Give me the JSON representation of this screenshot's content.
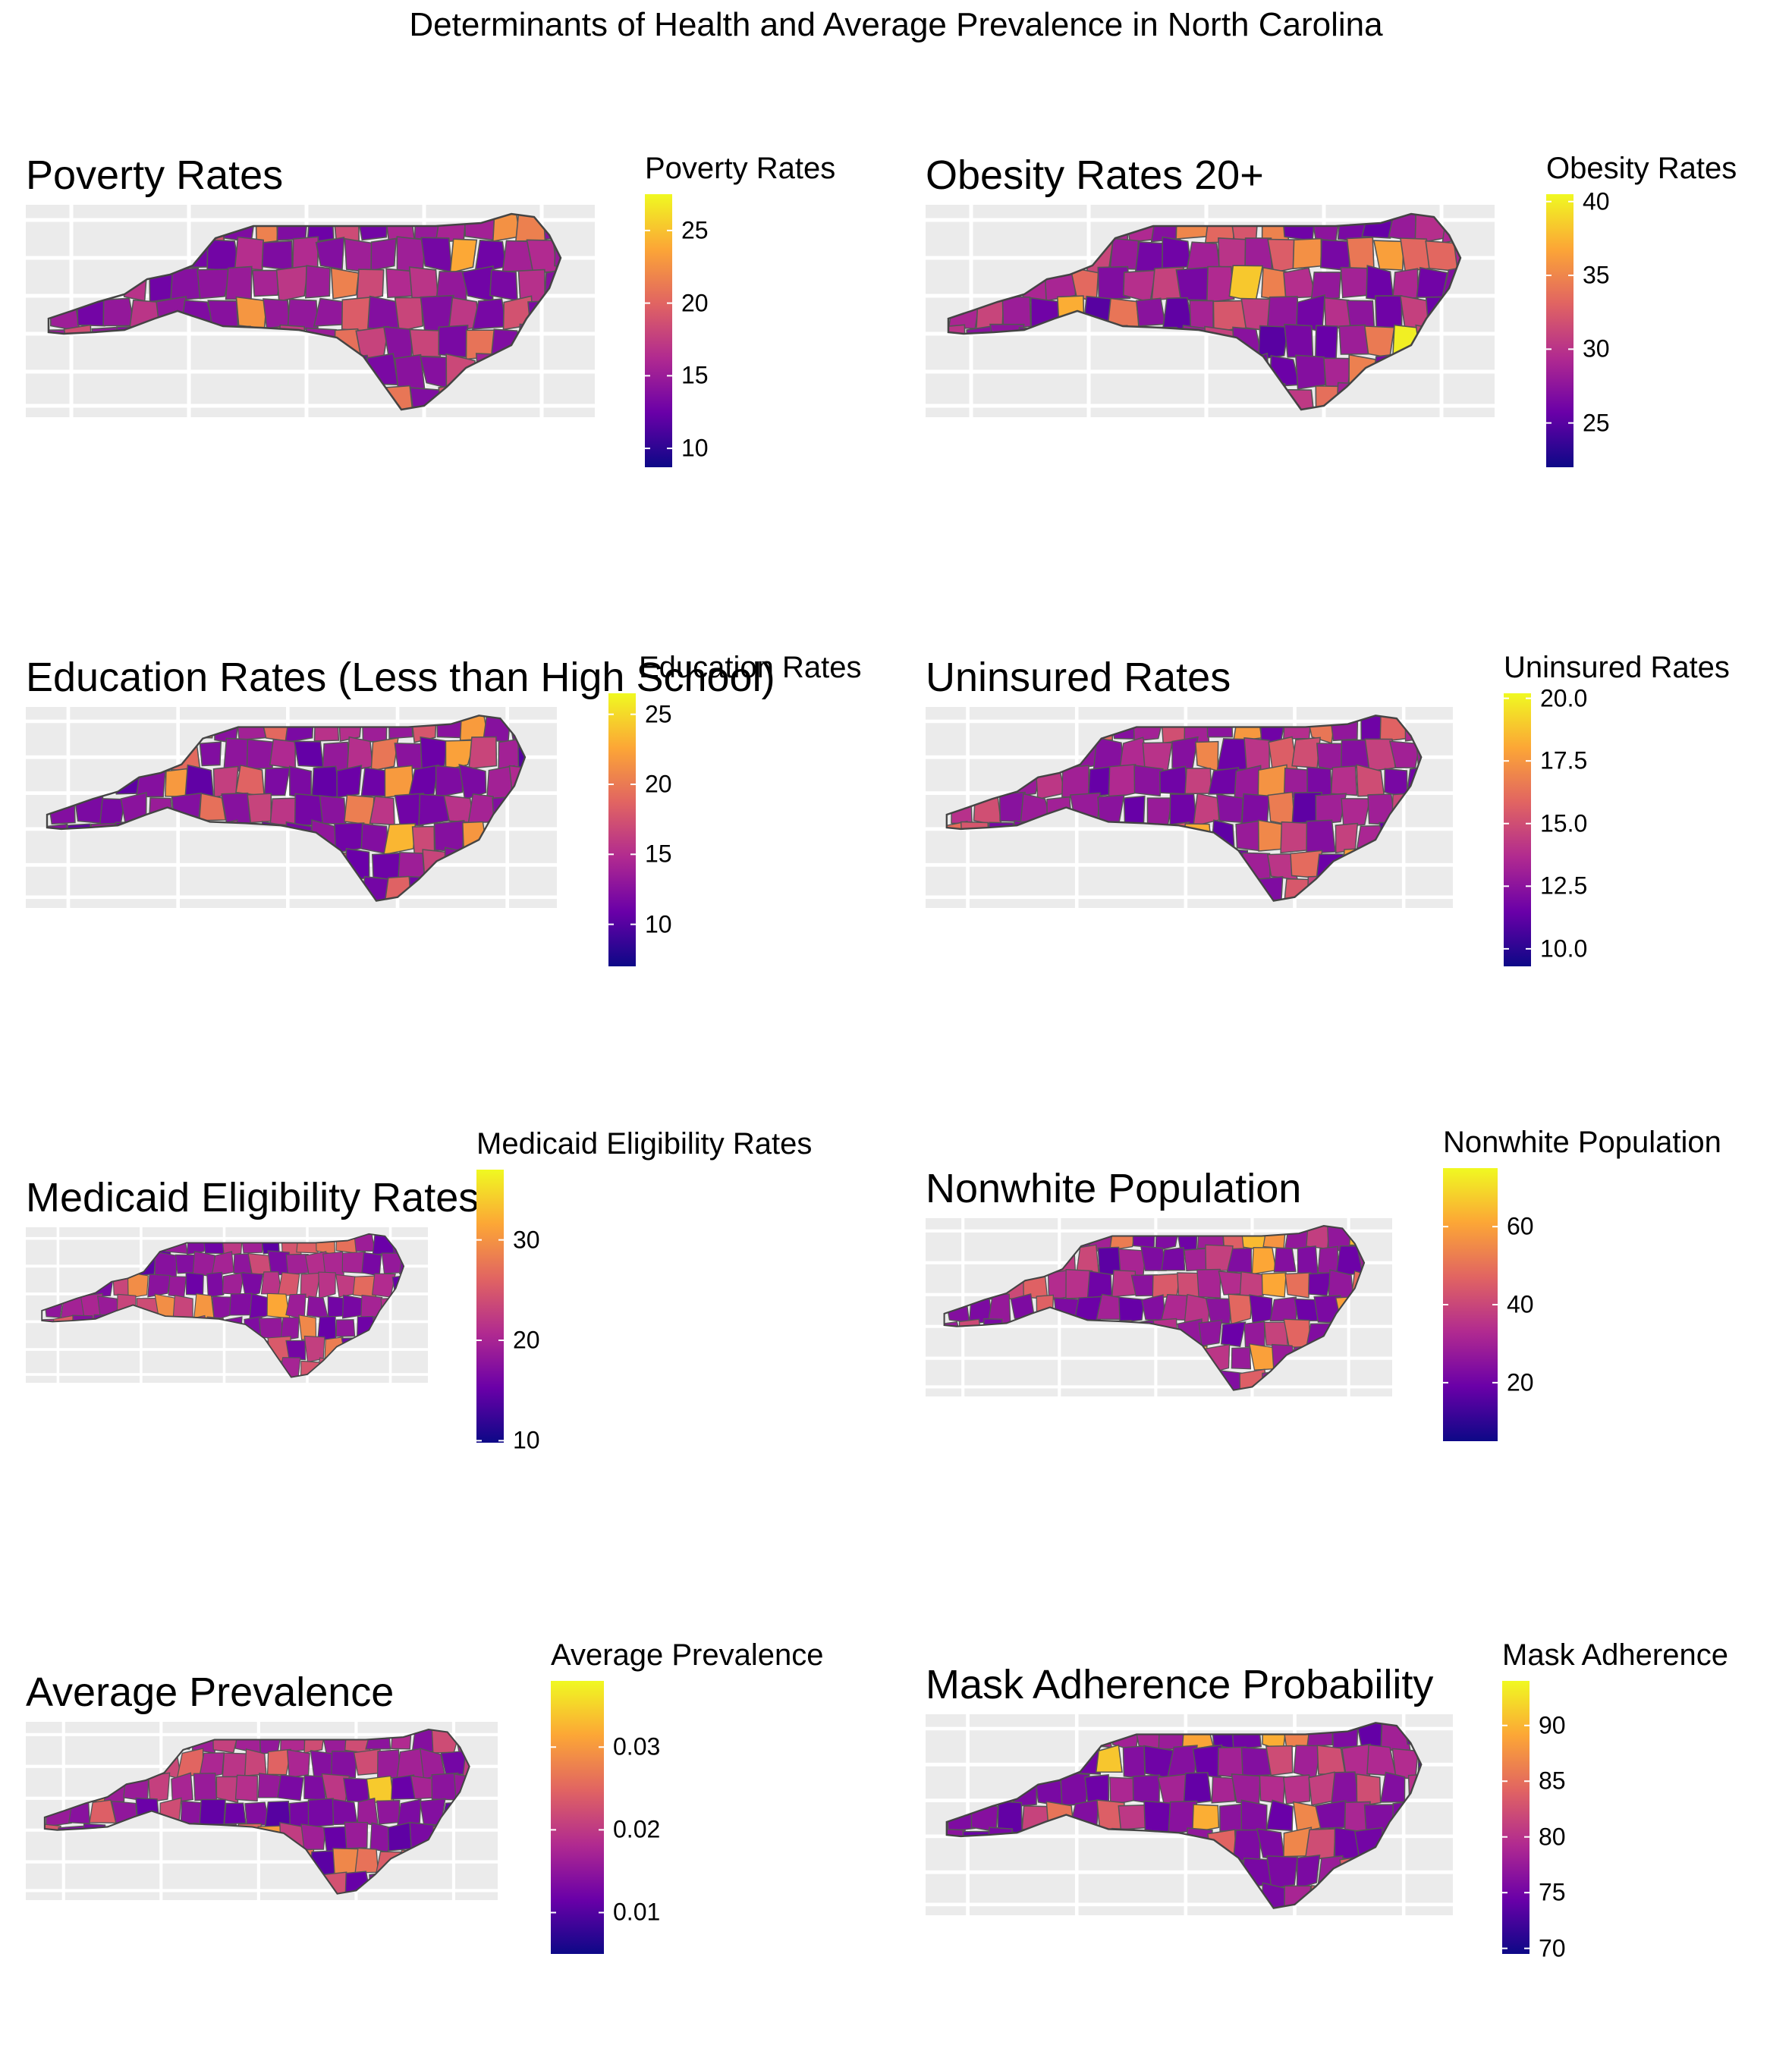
{
  "title": "Determinants of Health and Average Prevalence in North Carolina",
  "colorscale": [
    "#0d0887",
    "#6a00a8",
    "#b12a90",
    "#e16462",
    "#fca636",
    "#f0f921"
  ],
  "panels": [
    {
      "id": "poverty",
      "title": "Poverty Rates",
      "legend_title": "Poverty Rates",
      "range": [
        8.7,
        27.5
      ],
      "ticks": [
        10,
        15,
        20,
        25
      ],
      "tick_labels": [
        "10",
        "15",
        "20",
        "25"
      ],
      "seed": 3
    },
    {
      "id": "obesity",
      "title": "Obesity Rates 20+",
      "legend_title": "Obesity Rates",
      "range": [
        22,
        40.5
      ],
      "ticks": [
        25,
        30,
        35,
        40
      ],
      "tick_labels": [
        "25",
        "30",
        "35",
        "40"
      ],
      "seed": 7
    },
    {
      "id": "education",
      "title": "Education Rates (Less than High School)",
      "legend_title": "Education Rates",
      "range": [
        7,
        26.5
      ],
      "ticks": [
        10,
        15,
        20,
        25
      ],
      "tick_labels": [
        "10",
        "15",
        "20",
        "25"
      ],
      "seed": 11
    },
    {
      "id": "uninsured",
      "title": "Uninsured Rates",
      "legend_title": "Uninsured Rates",
      "range": [
        9.3,
        20.2
      ],
      "ticks": [
        10,
        12.5,
        15,
        17.5,
        20
      ],
      "tick_labels": [
        "10.0",
        "12.5",
        "15.0",
        "17.5",
        "20.0"
      ],
      "seed": 17
    },
    {
      "id": "medicaid",
      "title": "Medicaid Eligibility Rates",
      "legend_title": "Medicaid Eligibility Rates",
      "range": [
        9.8,
        37
      ],
      "ticks": [
        10,
        20,
        30
      ],
      "tick_labels": [
        "10",
        "20",
        "30"
      ],
      "seed": 23
    },
    {
      "id": "nonwhite",
      "title": "Nonwhite Population",
      "legend_title": "Nonwhite Population",
      "range": [
        5,
        75
      ],
      "ticks": [
        20,
        40,
        60
      ],
      "tick_labels": [
        "20",
        "40",
        "60"
      ],
      "seed": 29
    },
    {
      "id": "prevalence",
      "title": "Average Prevalence",
      "legend_title": "Average Prevalence",
      "range": [
        0.005,
        0.038
      ],
      "ticks": [
        0.01,
        0.02,
        0.03
      ],
      "tick_labels": [
        "0.01",
        "0.02",
        "0.03"
      ],
      "seed": 31
    },
    {
      "id": "mask",
      "title": "Mask Adherence Probability",
      "legend_title": "Mask Adherence",
      "range": [
        69.5,
        94
      ],
      "ticks": [
        70,
        75,
        80,
        85,
        90
      ],
      "tick_labels": [
        "70",
        "75",
        "80",
        "85",
        "90"
      ],
      "seed": 37
    }
  ]
}
